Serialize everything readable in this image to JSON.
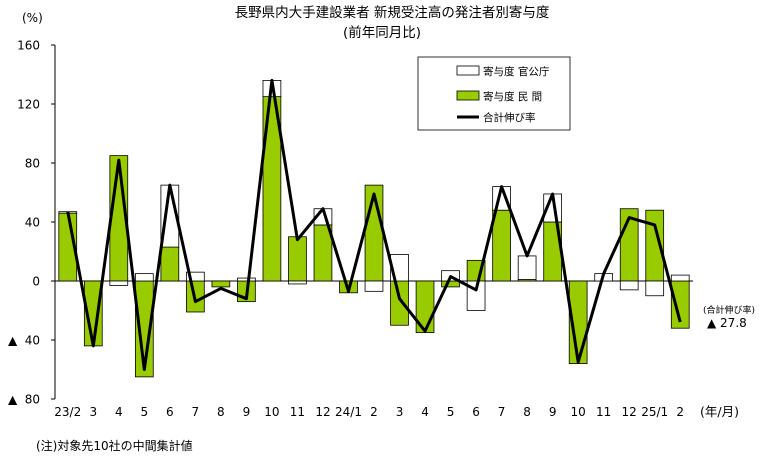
{
  "chart_data": {
    "type": "bar",
    "title": "長野県内大手建設業者 新規受注高の発注者別寄与度",
    "subtitle": "(前年同月比)",
    "y_unit_label": "(%)",
    "x_unit_label": "(年/月)",
    "ylim": [
      -80,
      160
    ],
    "y_ticks": [
      {
        "value": 160,
        "label": "160"
      },
      {
        "value": 120,
        "label": "120"
      },
      {
        "value": 80,
        "label": "80"
      },
      {
        "value": 40,
        "label": "40"
      },
      {
        "value": 0,
        "label": "0"
      },
      {
        "value": -40,
        "label": "▲ 40"
      },
      {
        "value": -80,
        "label": "▲ 80"
      }
    ],
    "categories": [
      "23/2",
      "3",
      "4",
      "5",
      "6",
      "7",
      "8",
      "9",
      "10",
      "11",
      "12",
      "24/1",
      "2",
      "3",
      "4",
      "5",
      "6",
      "7",
      "8",
      "9",
      "10",
      "11",
      "12",
      "25/1",
      "2"
    ],
    "series": [
      {
        "name": "寄与度 官公庁",
        "type": "bar",
        "color": "#ffffff",
        "values": [
          1,
          0,
          -3,
          5,
          42,
          6,
          0,
          2,
          11,
          -2,
          11,
          0,
          -7,
          18,
          0,
          7,
          -20,
          16,
          16,
          19,
          0,
          5,
          -6,
          -10,
          4
        ]
      },
      {
        "name": "寄与度 民 間",
        "type": "bar",
        "color": "#99cc00",
        "values": [
          46,
          -44,
          85,
          -65,
          23,
          -21,
          -4,
          -14,
          125,
          30,
          38,
          -8,
          65,
          -30,
          -35,
          -4,
          14,
          48,
          1,
          40,
          -56,
          0,
          49,
          48,
          -32
        ]
      },
      {
        "name": "合計伸び率",
        "type": "line",
        "color": "#000000",
        "values": [
          47,
          -44,
          82,
          -60,
          65,
          -14,
          -5,
          -12,
          136,
          28,
          49,
          -7,
          59,
          -12,
          -34,
          3,
          -6,
          64,
          17,
          59,
          -55,
          5,
          43,
          38,
          -27.8
        ]
      }
    ],
    "annotation": {
      "label": "(合計伸び率)",
      "value": "▲ 27.8"
    },
    "legend_position": "top-right",
    "note": "(注)対象先10社の中間集計値"
  }
}
